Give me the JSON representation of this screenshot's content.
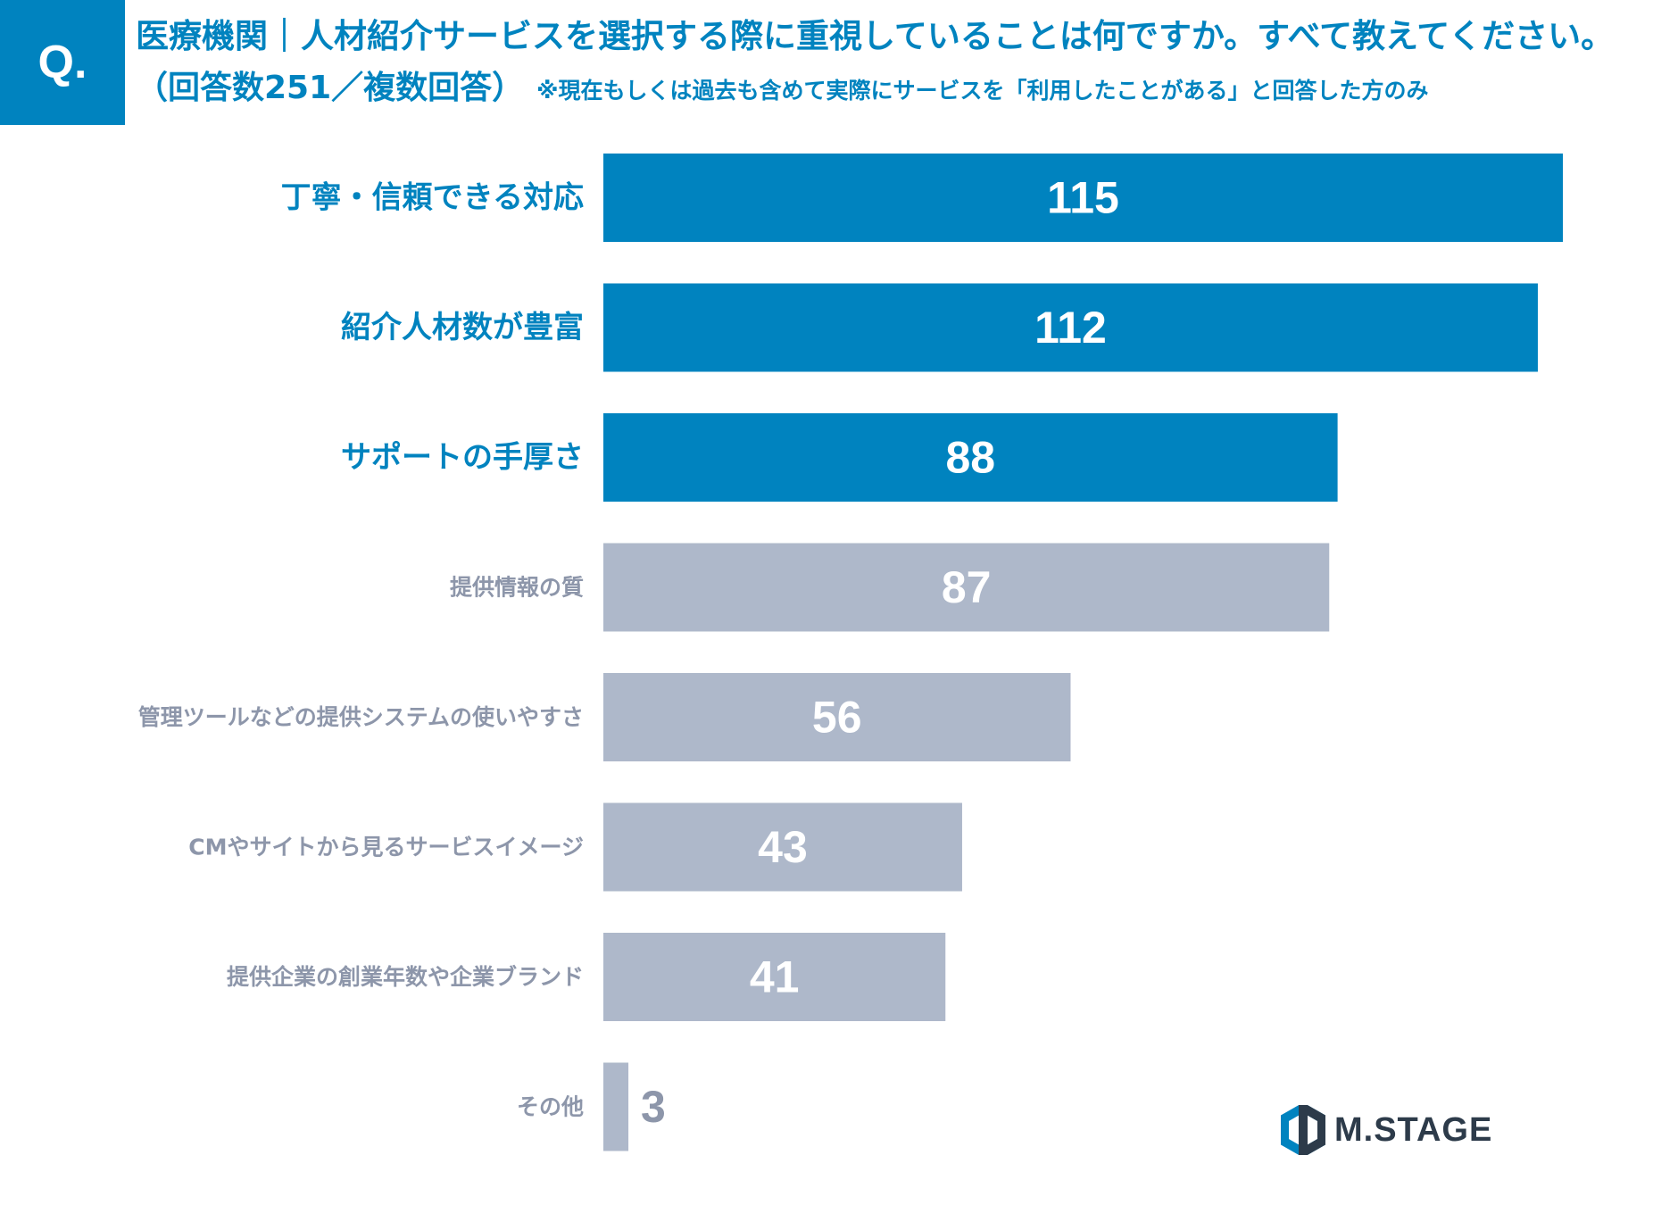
{
  "badge": "Q.",
  "title": {
    "line1": "医療機関｜人材紹介サービスを選択する際に重視していることは何ですか。すべて教えてください。",
    "line2_main": "（回答数251／複数回答）",
    "line2_note": "※現在もしくは過去も含めて実際にサービスを「利用したことがある」と回答した方のみ"
  },
  "colors": {
    "accent": "#0083bf",
    "highlight_bar": "#0083bf",
    "muted_bar": "#aeb8ca",
    "muted_label": "#8d96aa",
    "logo_dark": "#2d3b4a"
  },
  "chart_data": {
    "type": "bar",
    "orientation": "horizontal",
    "title": "医療機関｜人材紹介サービスを選択する際に重視していることは何ですか。すべて教えてください。",
    "xlabel": "",
    "ylabel": "",
    "xlim": [
      0,
      115
    ],
    "grid": false,
    "categories": [
      "丁寧・信頼できる対応",
      "紹介人材数が豊富",
      "サポートの手厚さ",
      "提供情報の質",
      "管理ツールなどの提供システムの使いやすさ",
      "CMやサイトから見るサービスイメージ",
      "提供企業の創業年数や企業ブランド",
      "その他"
    ],
    "values": [
      115,
      112,
      88,
      87,
      56,
      43,
      41,
      3
    ],
    "highlighted": [
      true,
      true,
      true,
      false,
      false,
      false,
      false,
      false
    ]
  },
  "logo": {
    "text": "M.STAGE",
    "icon": "hexagon-logo-icon"
  }
}
